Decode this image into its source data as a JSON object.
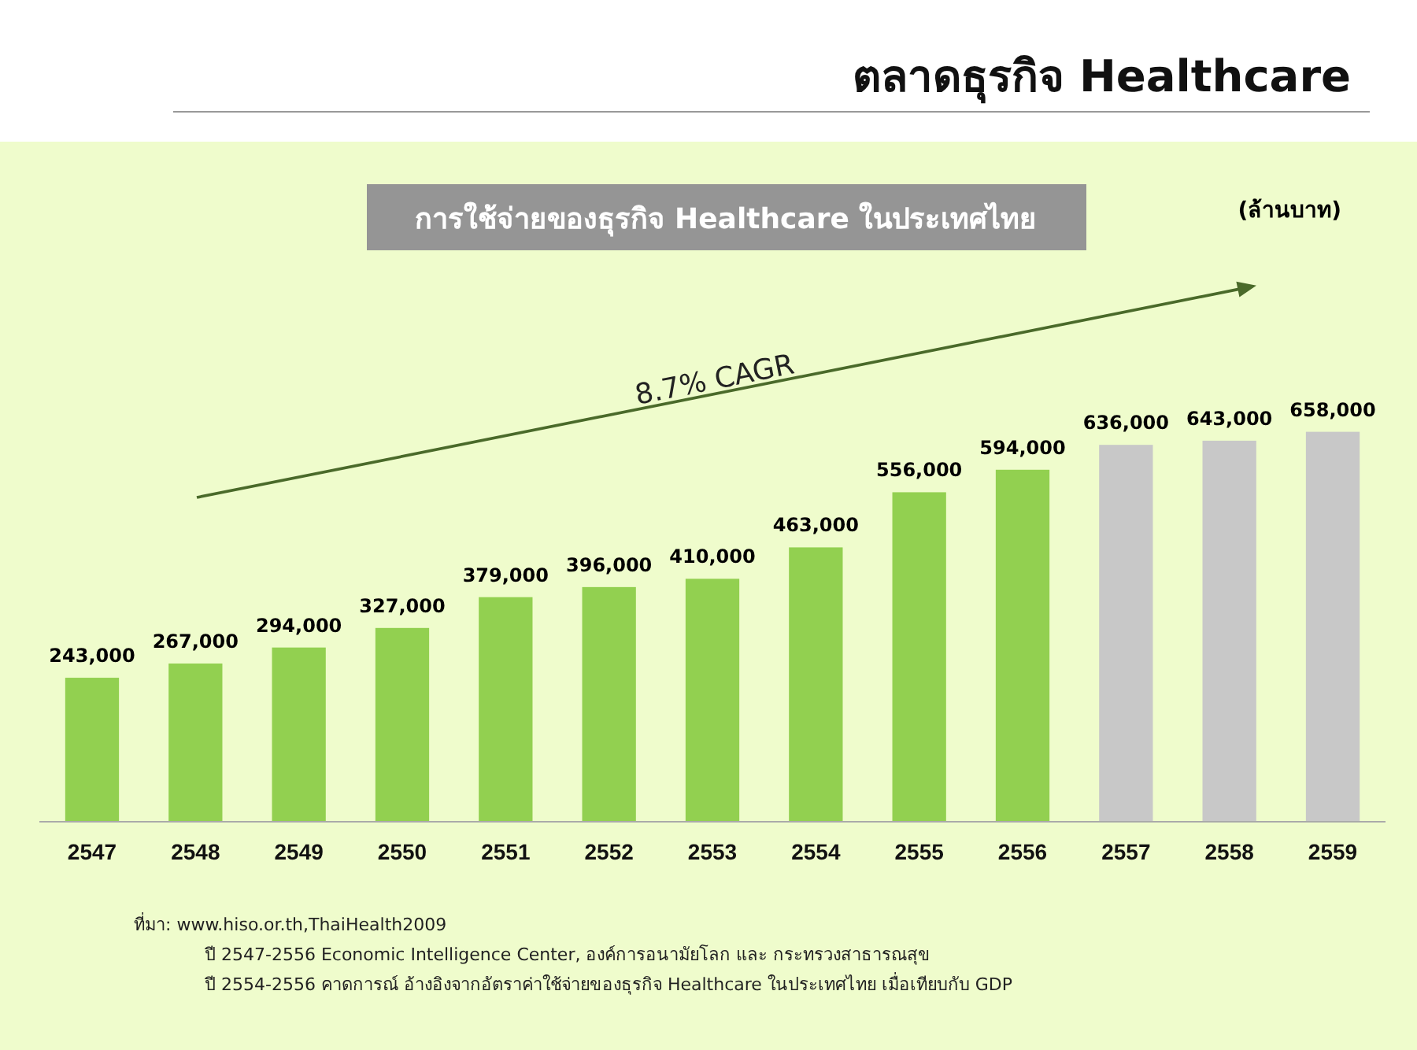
{
  "chart_data": {
    "type": "bar",
    "title": "ตลาดธุรกิจ Healthcare",
    "subtitle": "การใช้จ่ายของธุรกิจ Healthcare  ในประเทศไทย",
    "categories": [
      "2547",
      "2548",
      "2549",
      "2550",
      "2551",
      "2552",
      "2553",
      "2554",
      "2555",
      "2556",
      "2557",
      "2558",
      "2559"
    ],
    "values": [
      243000,
      267000,
      294000,
      327000,
      379000,
      396000,
      410000,
      463000,
      556000,
      594000,
      636000,
      643000,
      658000
    ],
    "colors": [
      "#92d050",
      "#92d050",
      "#92d050",
      "#92d050",
      "#92d050",
      "#92d050",
      "#92d050",
      "#92d050",
      "#92d050",
      "#92d050",
      "#c8c8c8",
      "#c8c8c8",
      "#c8c8c8"
    ],
    "value_labels": [
      "243,000",
      "267,000",
      "294,000",
      "327,000",
      "379,000",
      "396,000",
      "410,000",
      "463,000",
      "556,000",
      "594,000",
      "636,000",
      "643,000",
      "658,000"
    ],
    "annotations": [
      "8.7% CAGR",
      "(ล้านบาท)",
      "ที่มา: www.hiso.or.th,ThaiHealth2009",
      "ปี 2547-2556  Economic Intelligence Center, องค์การอนามัยโลก และ กระทรวงสาธารณสุข",
      "ปี 2554-2556  คาดการณ์ อ้างอิงจากอัตราค่าใช้จ่ายของธุรกิจ Healthcare ในประเทศไทย เมื่อเทียบกับ GDP"
    ]
  }
}
